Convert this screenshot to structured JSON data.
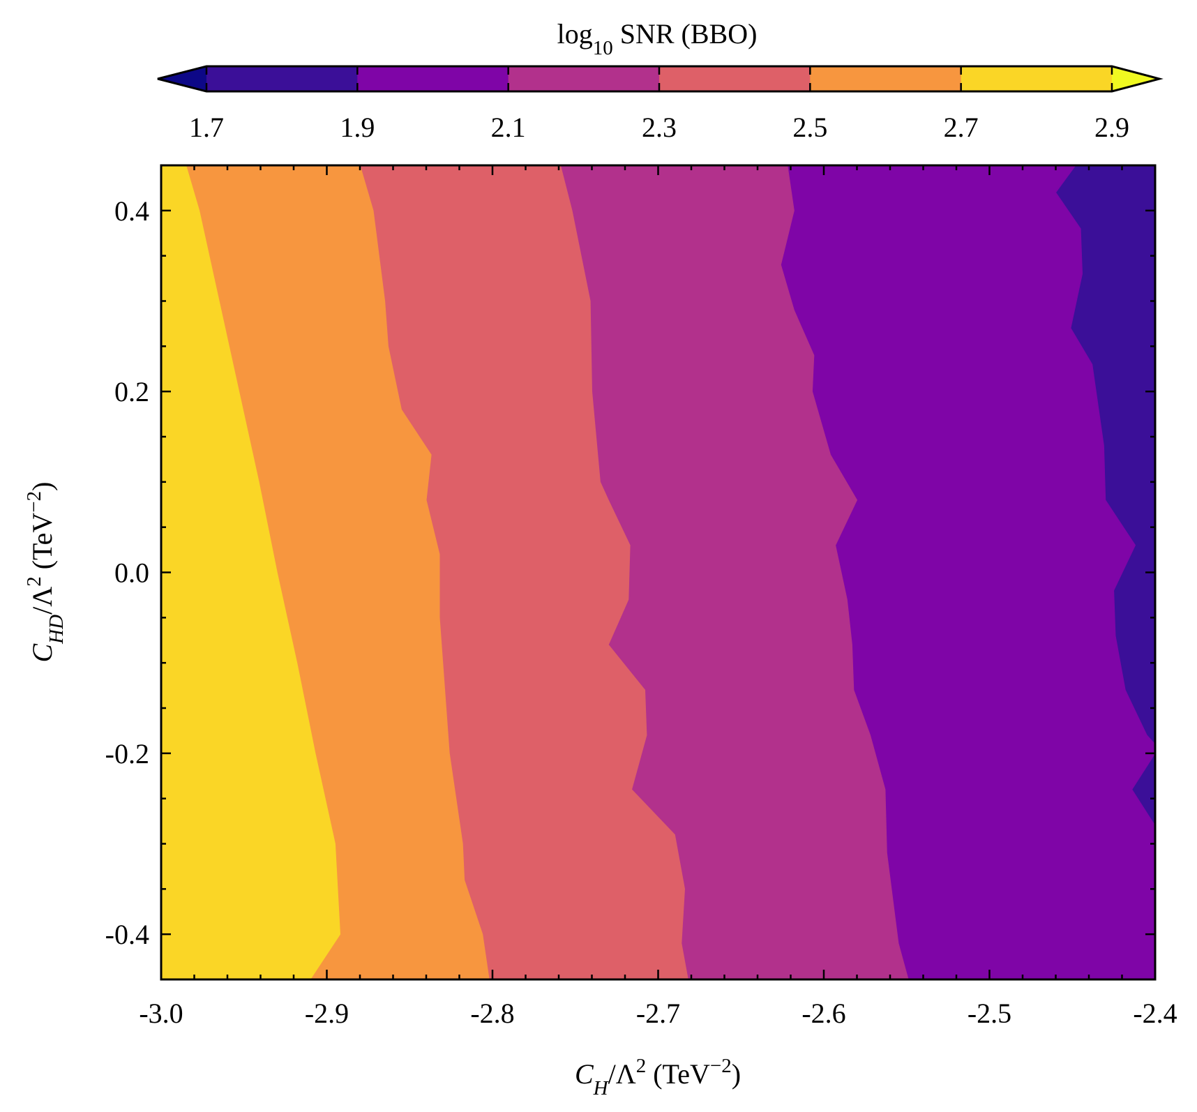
{
  "chart_data": {
    "type": "contour",
    "xlabel": {
      "var": "C",
      "sub": "H",
      "rest": "/Λ",
      "sup": "2",
      "unit": " (TeV",
      "unit_sup": "−2",
      "close": ")"
    },
    "ylabel": {
      "var": "C",
      "sub": "HD",
      "rest": "/Λ",
      "sup": "2",
      "unit": " (TeV",
      "unit_sup": "−2",
      "close": ")"
    },
    "xlim": [
      -3.0,
      -2.4
    ],
    "ylim": [
      -0.45,
      0.45
    ],
    "x_ticks": [
      -3.0,
      -2.9,
      -2.8,
      -2.7,
      -2.6,
      -2.5,
      -2.4
    ],
    "x_tick_labels": [
      "-3.0",
      "-2.9",
      "-2.8",
      "-2.7",
      "-2.6",
      "-2.5",
      "-2.4"
    ],
    "y_ticks": [
      -0.4,
      -0.2,
      0.0,
      0.2,
      0.4
    ],
    "y_tick_labels": [
      "-0.4",
      "-0.2",
      "0.0",
      "0.2",
      "0.4"
    ],
    "colorbar": {
      "label": {
        "pre": "log",
        "sub": "10",
        "post": " SNR (BBO)"
      },
      "levels": [
        1.7,
        1.9,
        2.1,
        2.3,
        2.5,
        2.7,
        2.9
      ],
      "tick_labels": [
        "1.7",
        "1.9",
        "2.1",
        "2.3",
        "2.5",
        "2.7",
        "2.9"
      ],
      "colors": [
        "#3b0f98",
        "#7f05a7",
        "#b2318c",
        "#de6068",
        "#f7963f",
        "#fad626"
      ],
      "under_color": "#0d0887",
      "over_color": "#f0f921",
      "extend": "both",
      "placement": "top"
    },
    "regions": [
      {
        "name": "2.7–2.9",
        "color": "#fad626",
        "boundary_right": [
          [
            -2.985,
            0.45
          ],
          [
            -2.977,
            0.4
          ],
          [
            -2.965,
            0.3
          ],
          [
            -2.953,
            0.2
          ],
          [
            -2.941,
            0.1
          ],
          [
            -2.93,
            0.0
          ],
          [
            -2.918,
            -0.1
          ],
          [
            -2.907,
            -0.2
          ],
          [
            -2.895,
            -0.3
          ],
          [
            -2.892,
            -0.4
          ],
          [
            -2.91,
            -0.45
          ]
        ]
      },
      {
        "name": "2.5–2.7",
        "color": "#f7963f",
        "boundary_right": [
          [
            -2.88,
            0.45
          ],
          [
            -2.872,
            0.4
          ],
          [
            -2.865,
            0.3
          ],
          [
            -2.863,
            0.25
          ],
          [
            -2.855,
            0.18
          ],
          [
            -2.837,
            0.13
          ],
          [
            -2.84,
            0.08
          ],
          [
            -2.832,
            0.02
          ],
          [
            -2.832,
            -0.05
          ],
          [
            -2.826,
            -0.2
          ],
          [
            -2.818,
            -0.3
          ],
          [
            -2.817,
            -0.34
          ],
          [
            -2.806,
            -0.4
          ],
          [
            -2.802,
            -0.45
          ]
        ]
      },
      {
        "name": "2.3–2.5",
        "color": "#de6068",
        "boundary_right": [
          [
            -2.759,
            0.45
          ],
          [
            -2.752,
            0.4
          ],
          [
            -2.741,
            0.3
          ],
          [
            -2.74,
            0.2
          ],
          [
            -2.735,
            0.1
          ],
          [
            -2.73,
            0.08
          ],
          [
            -2.717,
            0.03
          ],
          [
            -2.718,
            -0.03
          ],
          [
            -2.73,
            -0.08
          ],
          [
            -2.708,
            -0.13
          ],
          [
            -2.707,
            -0.18
          ],
          [
            -2.716,
            -0.24
          ],
          [
            -2.69,
            -0.29
          ],
          [
            -2.684,
            -0.35
          ],
          [
            -2.686,
            -0.41
          ],
          [
            -2.682,
            -0.45
          ]
        ]
      },
      {
        "name": "2.1–2.3",
        "color": "#b2318c",
        "boundary_right": [
          [
            -2.622,
            0.45
          ],
          [
            -2.618,
            0.4
          ],
          [
            -2.626,
            0.34
          ],
          [
            -2.618,
            0.29
          ],
          [
            -2.606,
            0.24
          ],
          [
            -2.607,
            0.2
          ],
          [
            -2.596,
            0.13
          ],
          [
            -2.58,
            0.08
          ],
          [
            -2.593,
            0.03
          ],
          [
            -2.586,
            -0.03
          ],
          [
            -2.583,
            -0.08
          ],
          [
            -2.582,
            -0.13
          ],
          [
            -2.572,
            -0.18
          ],
          [
            -2.563,
            -0.24
          ],
          [
            -2.562,
            -0.31
          ],
          [
            -2.555,
            -0.41
          ],
          [
            -2.549,
            -0.45
          ]
        ]
      },
      {
        "name": "1.9–2.1",
        "color": "#7f05a7",
        "boundary_right": [
          [
            -2.448,
            0.45
          ],
          [
            -2.46,
            0.42
          ],
          [
            -2.445,
            0.38
          ],
          [
            -2.444,
            0.33
          ],
          [
            -2.451,
            0.27
          ],
          [
            -2.438,
            0.23
          ],
          [
            -2.431,
            0.14
          ],
          [
            -2.43,
            0.08
          ],
          [
            -2.412,
            0.03
          ],
          [
            -2.425,
            -0.02
          ],
          [
            -2.424,
            -0.07
          ],
          [
            -2.418,
            -0.13
          ],
          [
            -2.405,
            -0.18
          ],
          [
            -2.4,
            -0.19
          ],
          [
            -2.4,
            -0.2
          ],
          [
            -2.414,
            -0.24
          ],
          [
            -2.4,
            -0.28
          ],
          [
            -2.4,
            -0.45
          ]
        ]
      },
      {
        "name": "1.7–1.9",
        "color": "#3b0f98",
        "boundary_right": [
          [
            -2.4,
            0.45
          ],
          [
            -2.4,
            -0.45
          ]
        ]
      }
    ]
  }
}
